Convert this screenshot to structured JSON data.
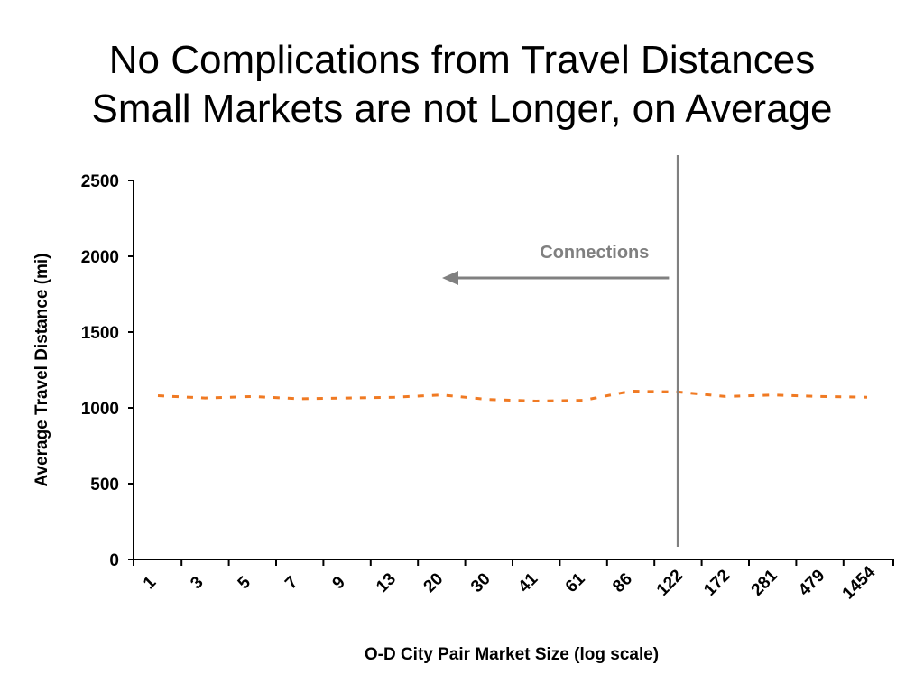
{
  "slide": {
    "title_line1": "No Complications from Travel Distances",
    "title_line2": "Small Markets are not Longer, on Average"
  },
  "colors": {
    "series": "#f07a23",
    "annotation": "#808080",
    "axis": "#000000"
  },
  "chart_data": {
    "type": "line",
    "xlabel": "O-D City Pair Market Size (log scale)",
    "ylabel": "Average Travel Distance (mi)",
    "ylim": [
      0,
      2500
    ],
    "yticks": [
      0,
      500,
      1000,
      1500,
      2000,
      2500
    ],
    "x_tick_labels": [
      "1",
      "3",
      "5",
      "7",
      "9",
      "13",
      "20",
      "30",
      "41",
      "61",
      "86",
      "122",
      "172",
      "281",
      "479",
      "1454"
    ],
    "grid": false,
    "legend": "none",
    "line_style": "dashed",
    "series": [
      {
        "values": [
          1080,
          1065,
          1075,
          1060,
          1065,
          1070,
          1085,
          1055,
          1045,
          1050,
          1110,
          1105,
          1075,
          1085,
          1075,
          1070
        ]
      }
    ],
    "annotations": [
      {
        "text": "Connections",
        "marker_at_category": "122",
        "arrow_direction": "left"
      }
    ]
  }
}
